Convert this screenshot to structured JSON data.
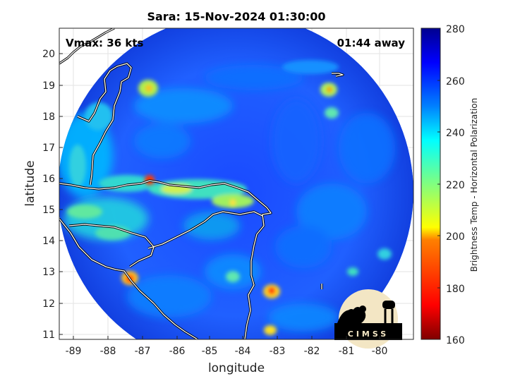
{
  "title": "Sara: 15-Nov-2024 01:30:00",
  "annotations": {
    "vmax": "Vmax: 36 kts",
    "time_away": "01:44 away"
  },
  "axes": {
    "xlabel": "longitude",
    "ylabel": "latitude",
    "x_ticks": [
      "-89",
      "-88",
      "-87",
      "-86",
      "-85",
      "-84",
      "-83",
      "-82",
      "-81",
      "-80"
    ],
    "y_ticks": [
      "20",
      "19",
      "18",
      "17",
      "16",
      "15",
      "14",
      "13",
      "12",
      "11"
    ]
  },
  "colorbar": {
    "label": "Brightness Temp - Horizontal Polarization",
    "ticks": [
      "280",
      "260",
      "240",
      "220",
      "200",
      "180",
      "160"
    ],
    "colormap": [
      "#7f0000",
      "#ff0000",
      "#ff8000",
      "#ffff00",
      "#80ff80",
      "#00ffff",
      "#0080ff",
      "#0000ff",
      "#00008f"
    ]
  },
  "logo": {
    "text": "CIMSS"
  },
  "colors": {
    "background_swath": "#1f5fff",
    "coast": "#ffffff"
  }
}
